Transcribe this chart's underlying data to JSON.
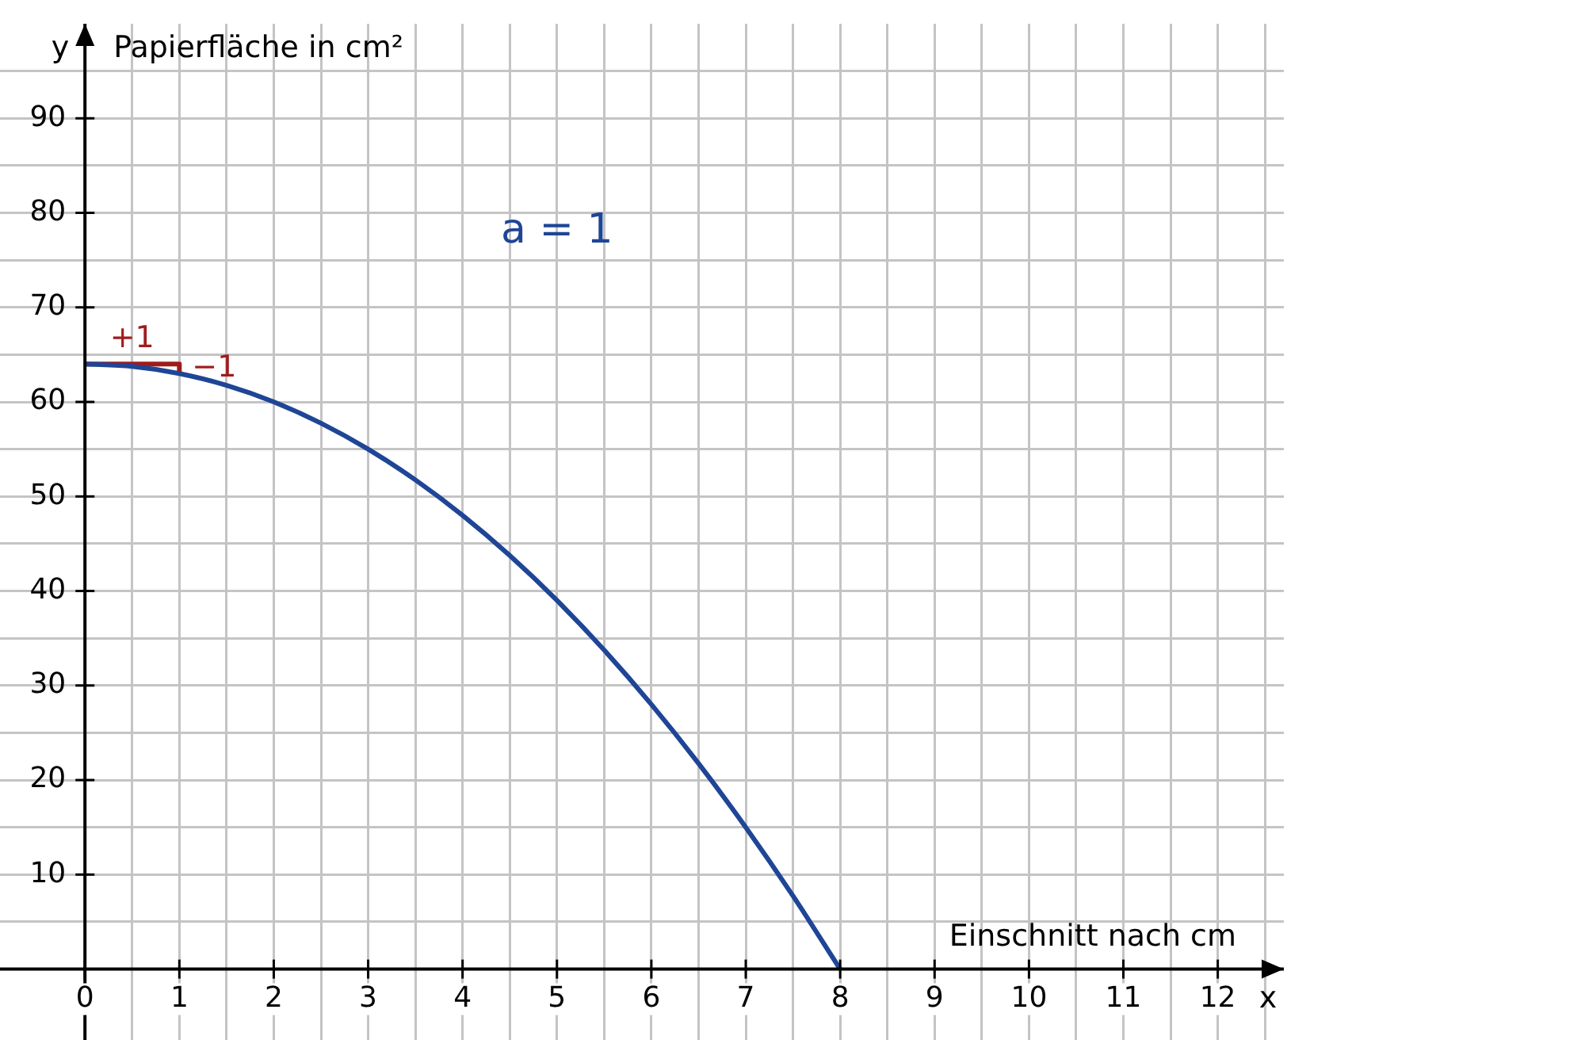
{
  "chart_data": {
    "type": "line",
    "xlabel": "Einschnitt nach cm",
    "ylabel": "Papierfläche in cm²",
    "series": [
      {
        "color": "#1f4596",
        "x": [
          0,
          0.5,
          1,
          1.5,
          2,
          2.5,
          3,
          3.5,
          4,
          4.5,
          5,
          5.5,
          6,
          6.5,
          7,
          7.5,
          8
        ],
        "values": [
          64,
          63.75,
          63,
          61.75,
          60,
          57.75,
          55,
          51.75,
          48,
          43.75,
          39,
          33.75,
          28,
          21.75,
          15,
          7.75,
          0
        ]
      },
      {
        "color": "#a01c1c",
        "x": [
          0,
          1,
          1
        ],
        "values": [
          64,
          64,
          63
        ]
      }
    ],
    "annotations": [
      "a = 1",
      "x",
      "y",
      {
        "text": "+1",
        "x": 0.5,
        "y": 64
      },
      {
        "text": "−1",
        "x": 1,
        "y": 63.5
      }
    ],
    "xlim": [
      -0.9,
      12.7
    ],
    "ylim": [
      -7.5,
      100
    ],
    "xticks": [
      0,
      {
        "value": 0.5,
        "label": null
      },
      1,
      {
        "value": 1.5,
        "label": null
      },
      2,
      {
        "value": 2.5,
        "label": null
      },
      3,
      {
        "value": 3.5,
        "label": null
      },
      4,
      {
        "value": 4.5,
        "label": null
      },
      5,
      {
        "value": 5.5,
        "label": null
      },
      6,
      {
        "value": 6.5,
        "label": null
      },
      7,
      {
        "value": 7.5,
        "label": null
      },
      8,
      {
        "value": 8.5,
        "label": null
      },
      9,
      {
        "value": 9.5,
        "label": null
      },
      10,
      {
        "value": 10.5,
        "label": null
      },
      11,
      {
        "value": 11.5,
        "label": null
      },
      12,
      {
        "value": 12.5,
        "label": null
      }
    ],
    "yticks": [
      {
        "value": 5,
        "label": null
      },
      10,
      {
        "value": 15,
        "label": null
      },
      20,
      {
        "value": 25,
        "label": null
      },
      30,
      {
        "value": 35,
        "label": null
      },
      40,
      {
        "value": 45,
        "label": null
      },
      50,
      {
        "value": 55,
        "label": null
      },
      60,
      {
        "value": 65,
        "label": null
      },
      70,
      {
        "value": 75,
        "label": null
      },
      80,
      {
        "value": 85,
        "label": null
      },
      90,
      {
        "value": 95,
        "label": null
      }
    ],
    "grid": true,
    "marker": "none",
    "line_style": "solid",
    "legend": false
  }
}
